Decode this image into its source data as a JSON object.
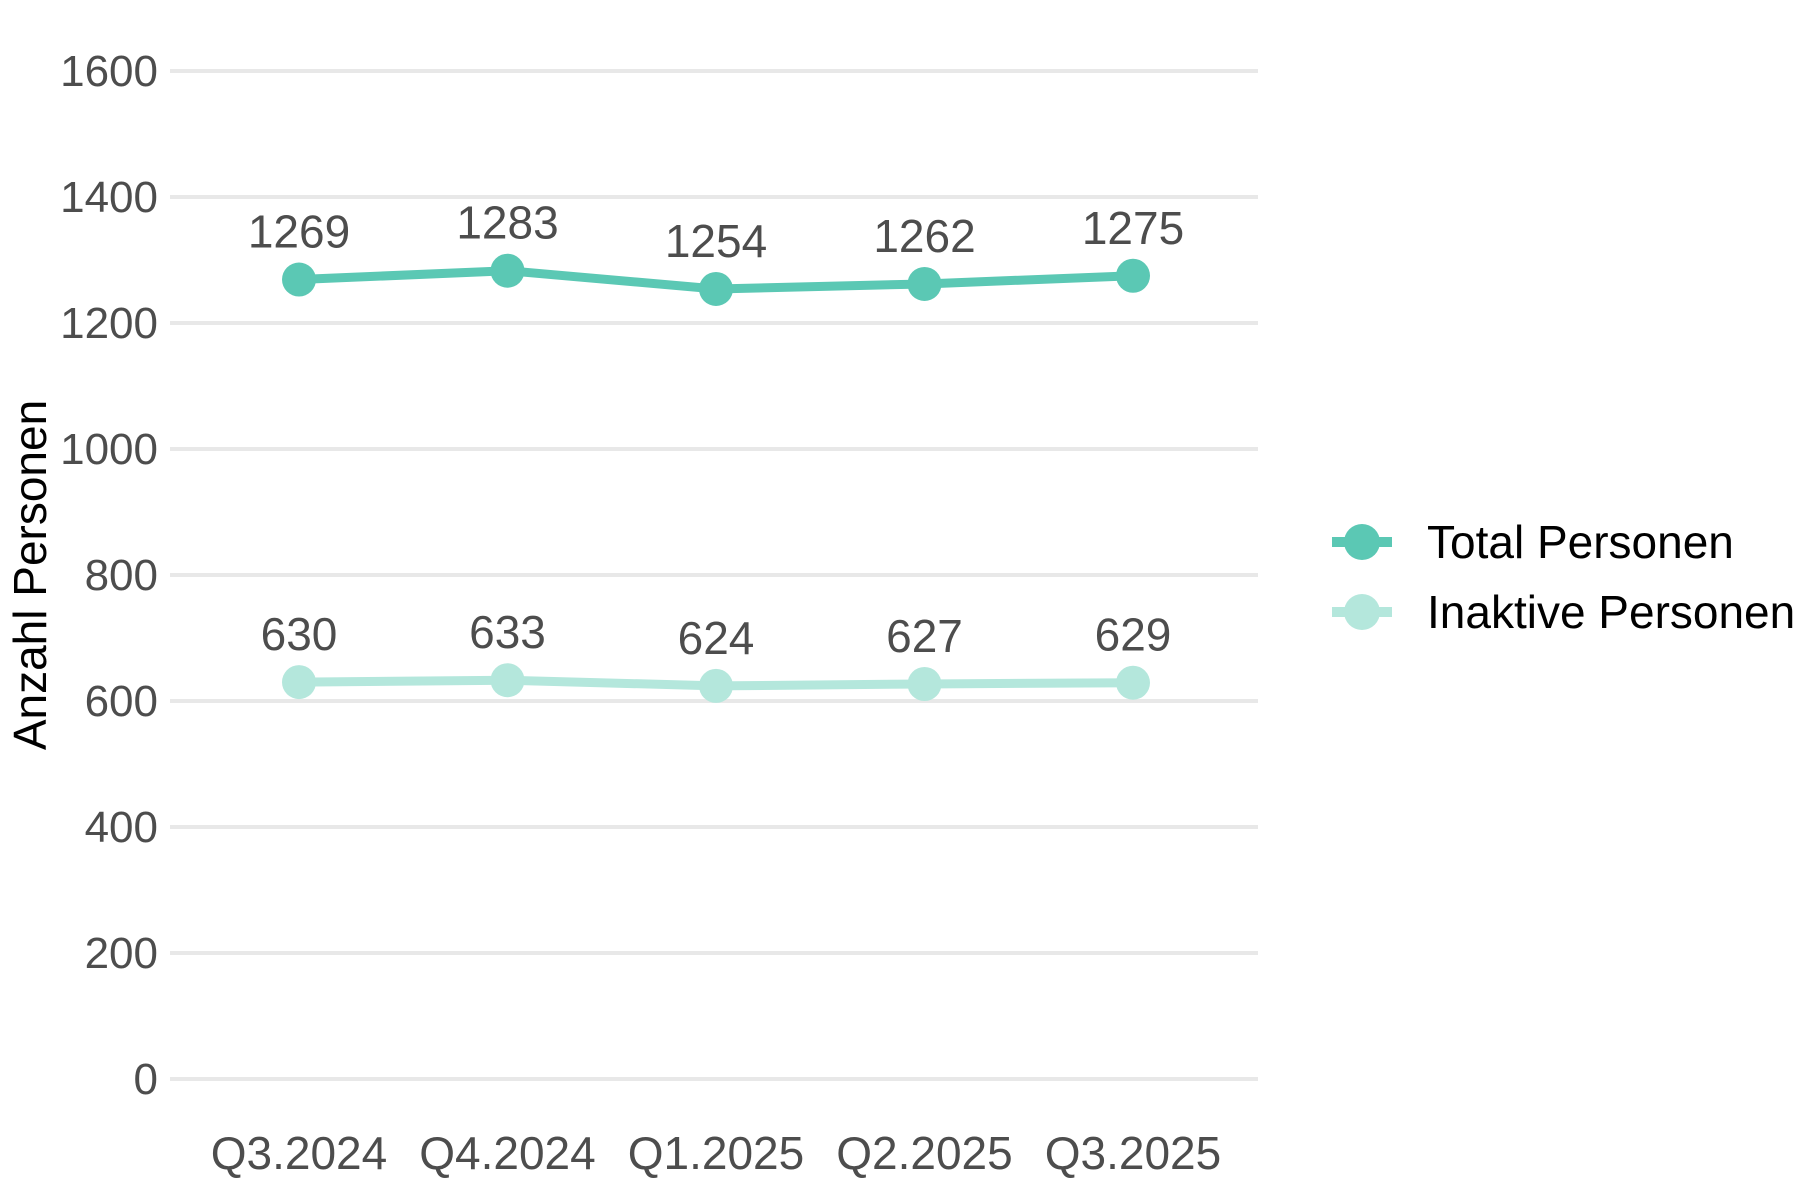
{
  "chart_data": {
    "type": "line",
    "categories": [
      "Q3.2024",
      "Q4.2024",
      "Q1.2025",
      "Q2.2025",
      "Q3.2025"
    ],
    "series": [
      {
        "name": "Total Personen",
        "values": [
          1269,
          1283,
          1254,
          1262,
          1275
        ],
        "color": "#5bc8b4"
      },
      {
        "name": "Inaktive Personen",
        "values": [
          630,
          633,
          624,
          627,
          629
        ],
        "color": "#b4e7dc"
      }
    ],
    "title": "",
    "xlabel": "",
    "ylabel": "Anzahl Personen",
    "ylim": [
      0,
      1600
    ],
    "ytick_step": 200,
    "yticks": [
      "0",
      "200",
      "400",
      "600",
      "800",
      "1000",
      "1200",
      "1400",
      "1600"
    ],
    "grid": "horizontal",
    "legend_position": "right",
    "data_labels_shown": true
  },
  "colors": {
    "background": "#ffffff",
    "gridline": "#e8e8e8",
    "tick_label": "#4d4d4d",
    "data_label": "#4d4d4d",
    "axis_title": "#000000",
    "legend_text": "#000000",
    "series_total": "#5bc8b4",
    "series_inactive": "#b4e7dc"
  }
}
